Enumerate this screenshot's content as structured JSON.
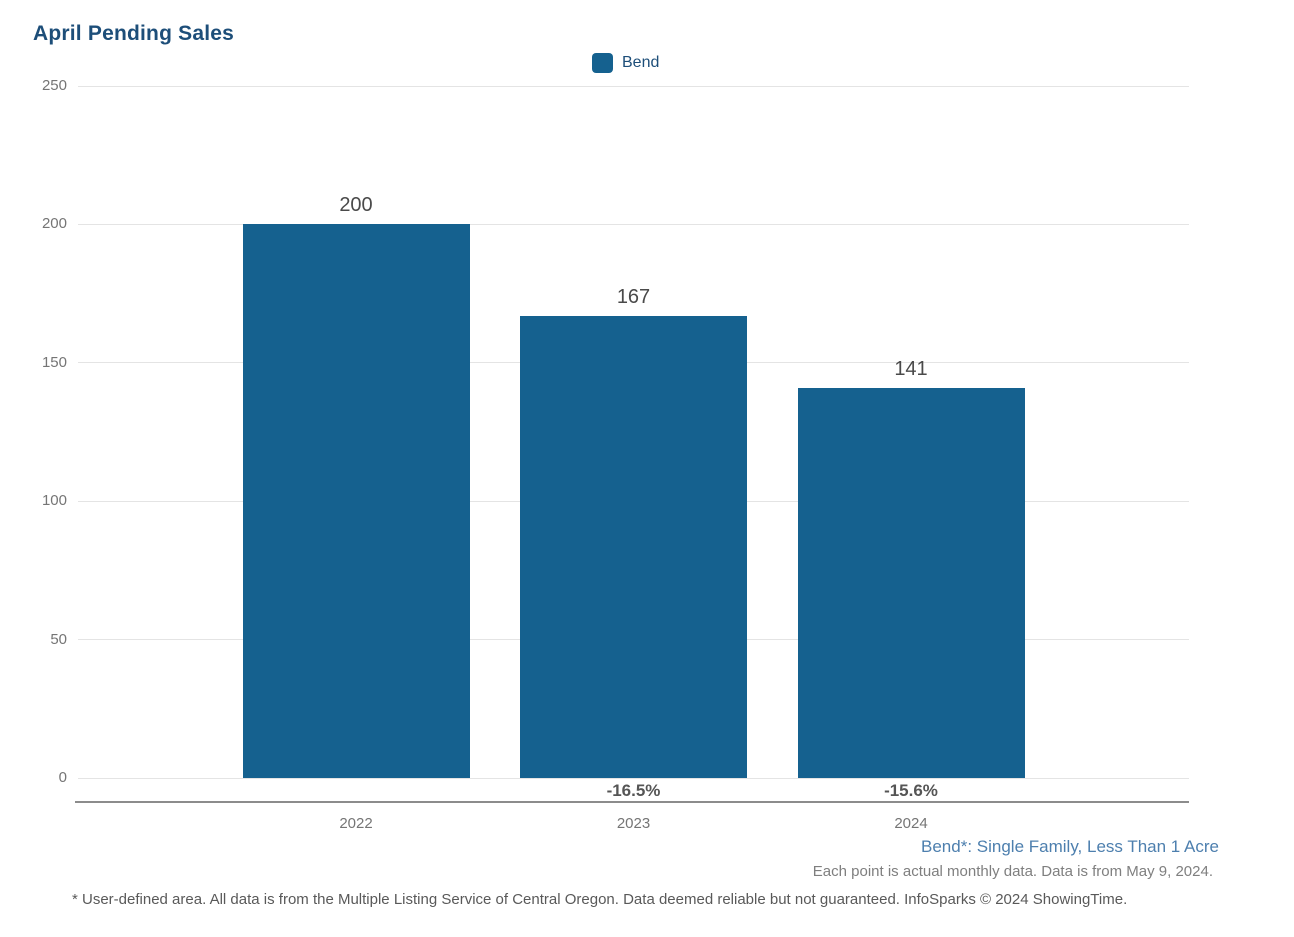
{
  "title": "April Pending Sales",
  "legend": {
    "label": "Bend"
  },
  "chart_data": {
    "type": "bar",
    "title": "April Pending Sales",
    "categories": [
      "2022",
      "2023",
      "2024"
    ],
    "series": [
      {
        "name": "Bend",
        "values": [
          200,
          167,
          141
        ]
      }
    ],
    "value_labels": [
      "200",
      "167",
      "141"
    ],
    "pct_change_labels": [
      null,
      "-16.5%",
      "-15.6%"
    ],
    "yticks": [
      0,
      50,
      100,
      150,
      200,
      250
    ],
    "ylim": [
      0,
      250
    ],
    "xlabel": "",
    "ylabel": "",
    "grid": "horizontal",
    "legend_position": "top-center",
    "bar_color": "#15618f"
  },
  "footnotes": {
    "series_definition": "Bend*: Single Family, Less Than 1 Acre",
    "data_note": "Each point is actual monthly data. Data is from May 9, 2024.",
    "disclaimer": "* User-defined area. All data is from the Multiple Listing Service of Central Oregon. Data deemed reliable but not guaranteed. InfoSparks © 2024 ShowingTime."
  },
  "colors": {
    "bar": "#15618f",
    "title_text": "#1d4e79",
    "tick_label": "#757575",
    "value_label": "#4a4a4a",
    "pct_label": "#555555",
    "gridline": "#e4e4e4",
    "axis_line": "#8c8c8c",
    "footnote_blue": "#4d7fae",
    "footnote_gray": "#7f7f7f",
    "disclaimer_gray": "#595959"
  }
}
